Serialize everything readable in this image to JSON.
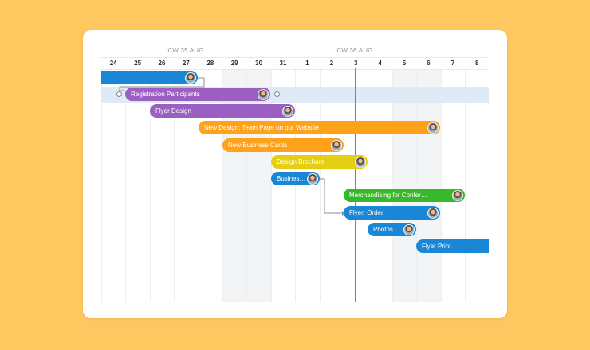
{
  "timeline": {
    "week_labels": [
      "CW 35 AUG",
      "CW 36 AUG"
    ],
    "days": [
      "24",
      "25",
      "26",
      "27",
      "28",
      "29",
      "30",
      "31",
      "1",
      "2",
      "3",
      "4",
      "5",
      "6",
      "7",
      "8"
    ]
  },
  "tasks": [
    {
      "label": "",
      "color": "#1a86d6"
    },
    {
      "label": "Registration Participants",
      "color": "#9b5fc2"
    },
    {
      "label": "Flyer Design",
      "color": "#9b5fc2"
    },
    {
      "label": "New Design: Team Page on our Website",
      "color": "#ffa21a"
    },
    {
      "label": "New Business Cards",
      "color": "#ffa21a"
    },
    {
      "label": "Design Brochure",
      "color": "#e4cf12"
    },
    {
      "label": "Busines…",
      "color": "#1a86d6"
    },
    {
      "label": "Merchandising for Confer…",
      "color": "#36b82a"
    },
    {
      "label": "Flyer: Order",
      "color": "#1a86d6"
    },
    {
      "label": "Photos …",
      "color": "#1a86d6"
    },
    {
      "label": "Flyer Print",
      "color": "#1a86d6"
    }
  ],
  "colors": {
    "background": "#ffc75f",
    "today_line": "#f0524f",
    "selected_row": "#deebf7"
  }
}
